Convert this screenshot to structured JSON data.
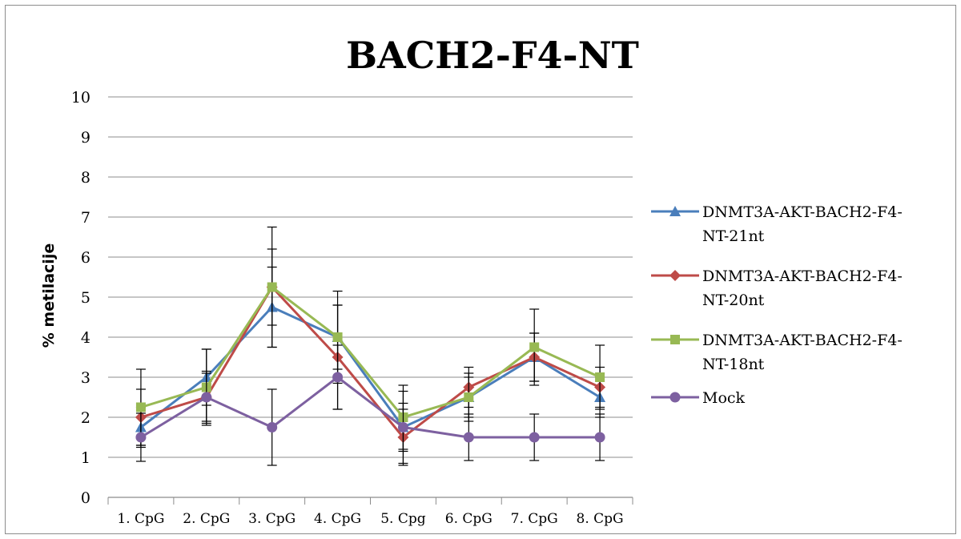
{
  "chart_data": {
    "type": "line",
    "title": "BACH2-F4-NT",
    "xlabel": "",
    "ylabel": "% metilacije",
    "ylim": [
      0,
      10
    ],
    "yticks": [
      0,
      1,
      2,
      3,
      4,
      5,
      6,
      7,
      8,
      9,
      10
    ],
    "grid": true,
    "legend": "right",
    "categories": [
      "1. CpG",
      "2. CpG",
      "3. CpG",
      "4. CpG",
      "5. Cpg",
      "6. CpG",
      "7. CpG",
      "8. CpG"
    ],
    "series": [
      {
        "name": "DNMT3A-AKT-BACH2-F4-NT-21nt",
        "legend_lines": [
          "DNMT3A-AKT-BACH2-F4-",
          "NT-21nt"
        ],
        "color": "#4a7ebb",
        "marker": "triangle",
        "values": [
          1.75,
          3.0,
          4.75,
          4.0,
          1.75,
          2.5,
          3.5,
          2.5
        ],
        "errors": [
          0.5,
          0.7,
          1.0,
          0.8,
          0.6,
          0.5,
          0.6,
          0.5
        ]
      },
      {
        "name": "DNMT3A-AKT-BACH2-F4-NT-20nt",
        "legend_lines": [
          "DNMT3A-AKT-BACH2-F4-",
          "NT-20nt"
        ],
        "color": "#be4b48",
        "marker": "diamond",
        "values": [
          2.0,
          2.5,
          5.25,
          3.5,
          1.5,
          2.75,
          3.5,
          2.75
        ],
        "errors": [
          0.7,
          0.6,
          0.95,
          1.3,
          0.7,
          0.5,
          0.6,
          0.5
        ]
      },
      {
        "name": "DNMT3A-AKT-BACH2-F4-NT-18nt",
        "legend_lines": [
          "DNMT3A-AKT-BACH2-F4-",
          "NT-18nt"
        ],
        "color": "#98b954",
        "marker": "square",
        "values": [
          2.25,
          2.75,
          5.25,
          4.0,
          2.0,
          2.5,
          3.75,
          3.0
        ],
        "errors": [
          0.95,
          0.95,
          1.5,
          1.15,
          0.8,
          0.6,
          0.95,
          0.8
        ]
      },
      {
        "name": "Mock",
        "legend_lines": [
          "Mock"
        ],
        "color": "#7d60a0",
        "marker": "circle",
        "values": [
          1.5,
          2.5,
          1.75,
          3.0,
          1.75,
          1.5,
          1.5,
          1.5
        ],
        "errors": [
          0.6,
          0.65,
          0.95,
          0.8,
          0.9,
          0.58,
          0.58,
          0.58
        ]
      }
    ]
  }
}
